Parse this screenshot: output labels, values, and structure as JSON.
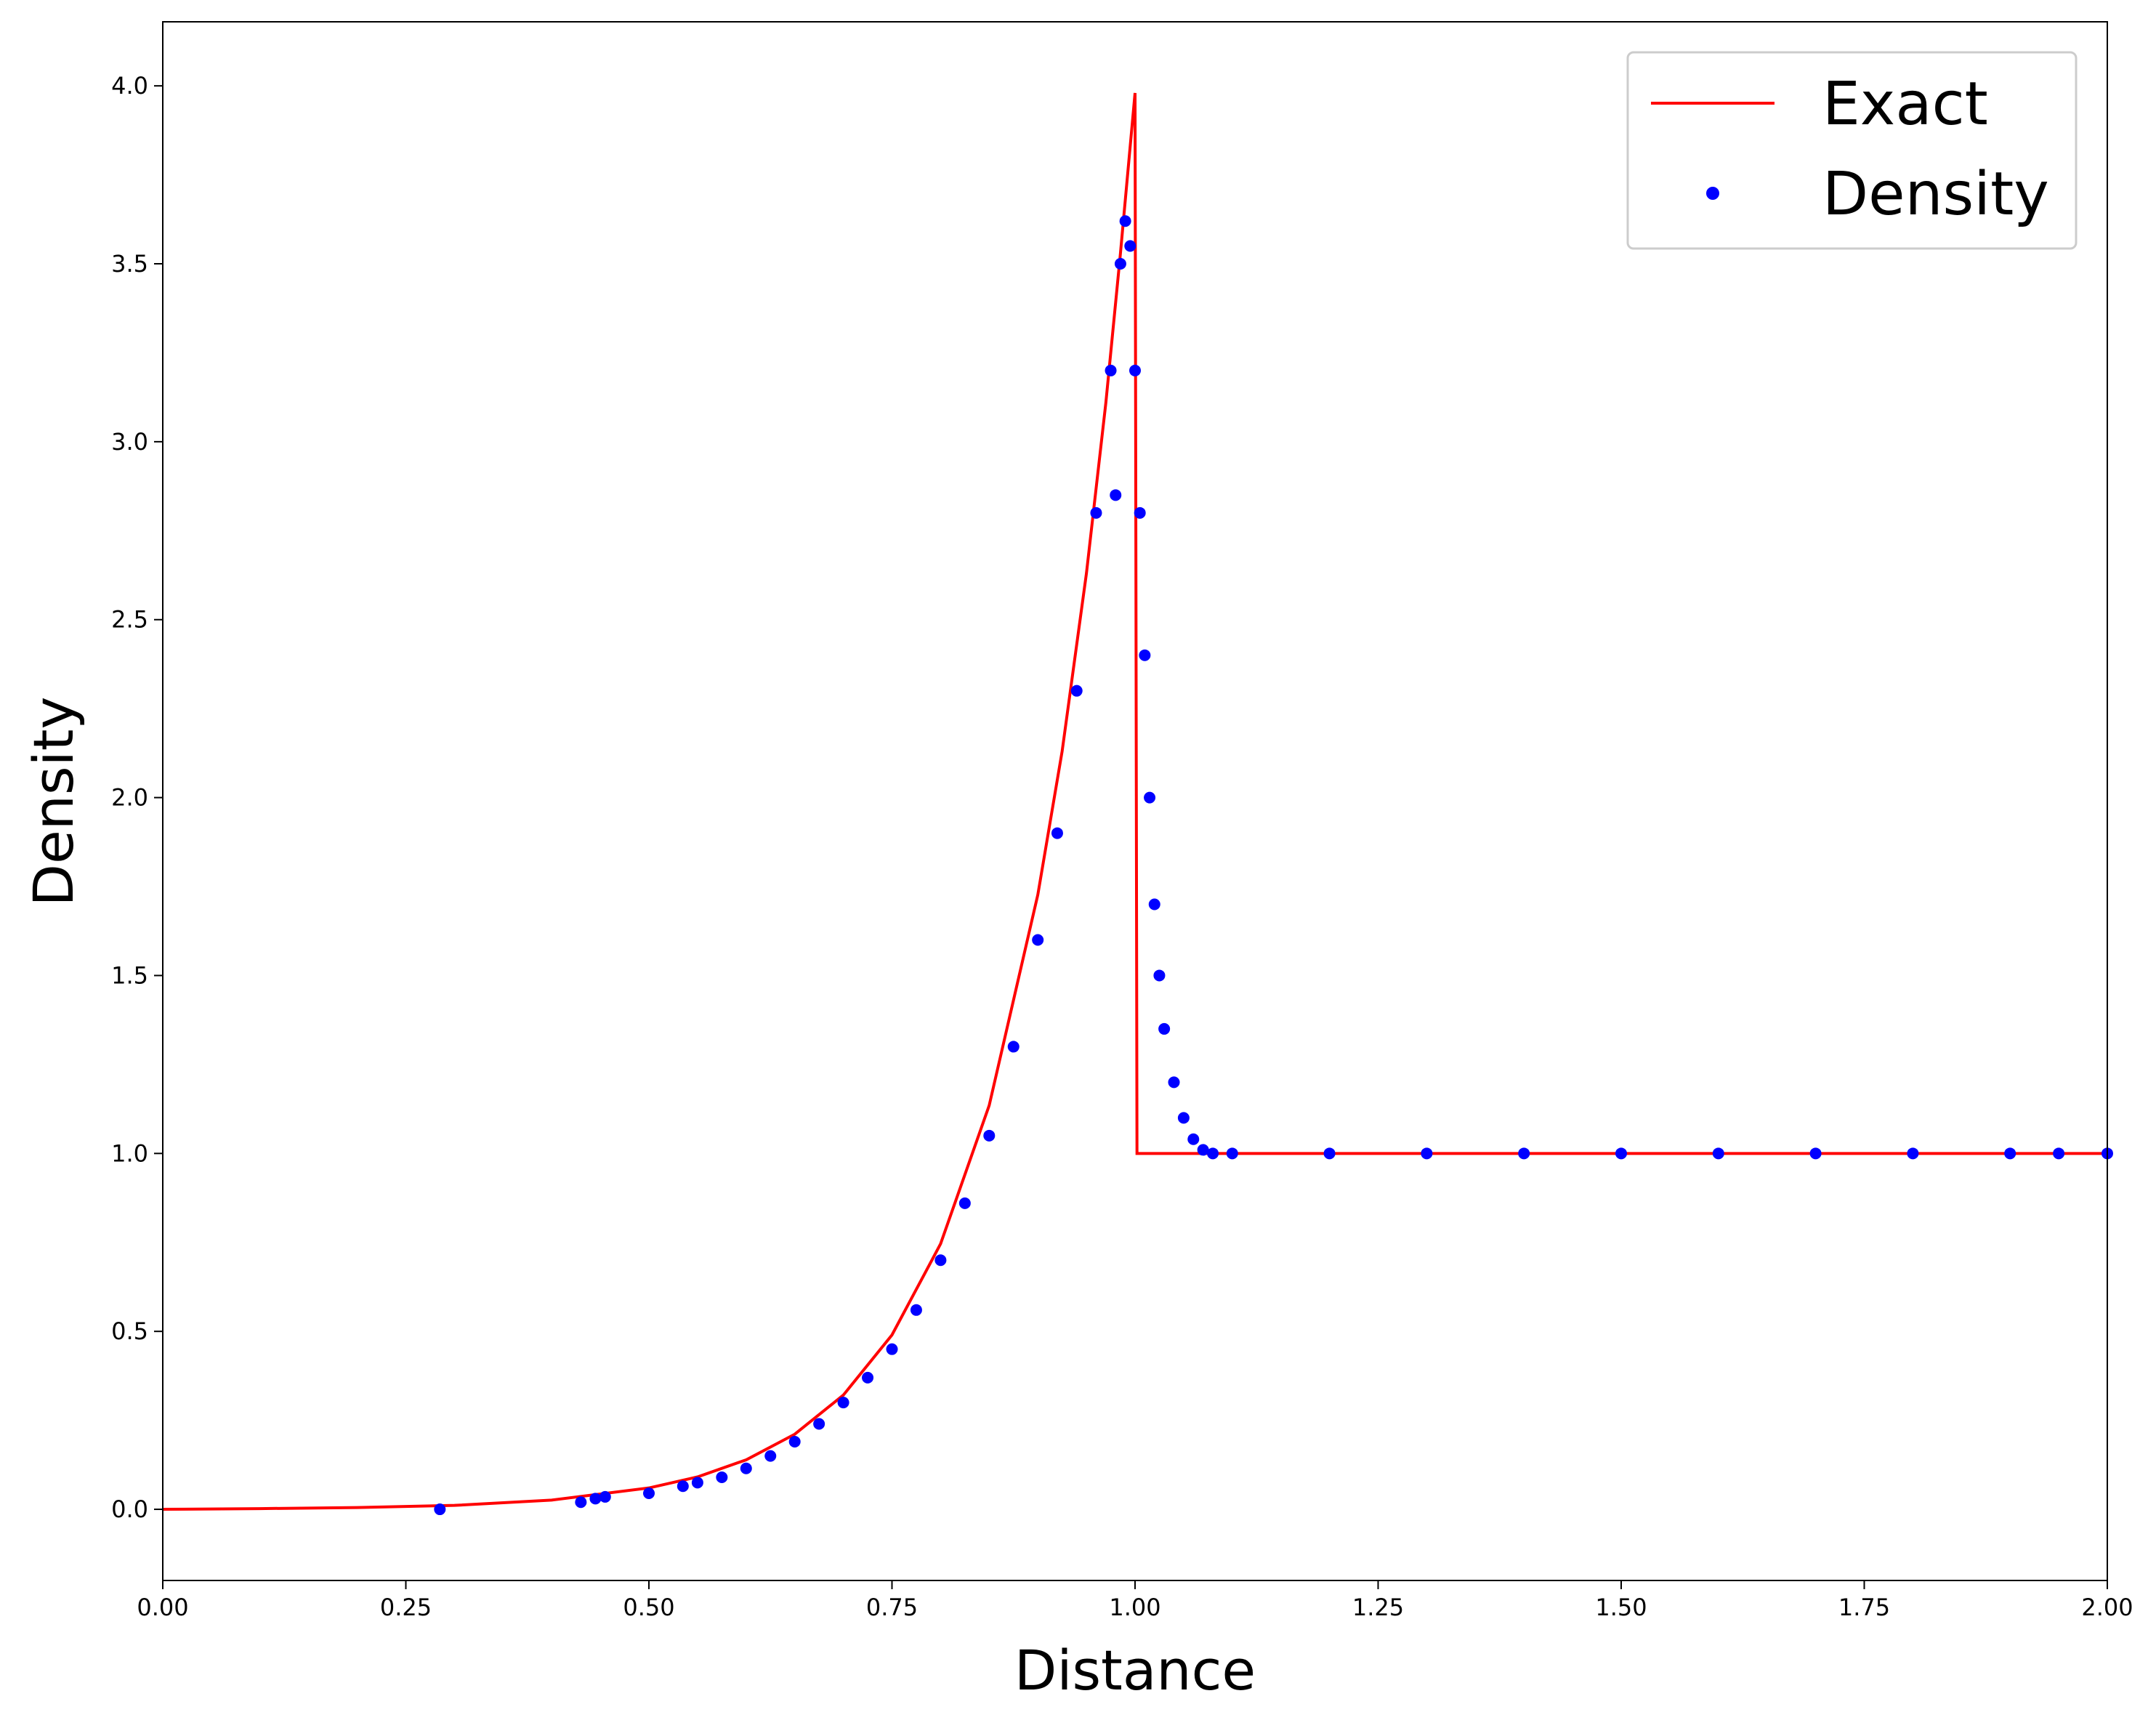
{
  "chart_data": {
    "type": "line_scatter",
    "xlabel": "Distance",
    "ylabel": "Density",
    "xlim": [
      0,
      2
    ],
    "ylim": [
      -0.2,
      4.18
    ],
    "xticks": [
      {
        "value": 0,
        "label": "0.00"
      },
      {
        "value": 0.25,
        "label": "0.25"
      },
      {
        "value": 0.5,
        "label": "0.50"
      },
      {
        "value": 0.75,
        "label": "0.75"
      },
      {
        "value": 1,
        "label": "1.00"
      },
      {
        "value": 1.25,
        "label": "1.25"
      },
      {
        "value": 1.5,
        "label": "1.50"
      },
      {
        "value": 1.75,
        "label": "1.75"
      },
      {
        "value": 2,
        "label": "2.00"
      }
    ],
    "yticks": [
      {
        "value": 0,
        "label": "0.0"
      },
      {
        "value": 0.5,
        "label": "0.5"
      },
      {
        "value": 1,
        "label": "1.0"
      },
      {
        "value": 1.5,
        "label": "1.5"
      },
      {
        "value": 2,
        "label": "2.0"
      },
      {
        "value": 2.5,
        "label": "2.5"
      },
      {
        "value": 3,
        "label": "3.0"
      },
      {
        "value": 3.5,
        "label": "3.5"
      },
      {
        "value": 4,
        "label": "4.0"
      }
    ],
    "legend": "upper right",
    "series": [
      {
        "name": "Exact",
        "type": "line",
        "color": "#ff0000",
        "x": [
          0,
          0.1,
          0.2,
          0.3,
          0.4,
          0.5,
          0.55,
          0.6,
          0.65,
          0.7,
          0.75,
          0.8,
          0.85,
          0.9,
          0.925,
          0.95,
          0.97,
          0.985,
          1.0,
          1.002,
          2.0
        ],
        "values": [
          0.0,
          0.002,
          0.005,
          0.011,
          0.026,
          0.06,
          0.091,
          0.139,
          0.211,
          0.321,
          0.49,
          0.746,
          1.135,
          1.727,
          2.13,
          2.63,
          3.11,
          3.53,
          3.98,
          1.0,
          1.0
        ]
      },
      {
        "name": "Density",
        "type": "scatter",
        "color": "#0000ff",
        "x": [
          0.285,
          0.43,
          0.445,
          0.455,
          0.5,
          0.535,
          0.55,
          0.575,
          0.6,
          0.625,
          0.65,
          0.675,
          0.7,
          0.725,
          0.75,
          0.775,
          0.8,
          0.825,
          0.85,
          0.875,
          0.9,
          0.92,
          0.94,
          0.96,
          0.975,
          0.98,
          0.985,
          0.99,
          0.995,
          1.0,
          1.005,
          1.01,
          1.015,
          1.02,
          1.025,
          1.03,
          1.04,
          1.05,
          1.06,
          1.07,
          1.08,
          1.1,
          1.2,
          1.3,
          1.4,
          1.5,
          1.6,
          1.7,
          1.8,
          1.9,
          1.95,
          2.0
        ],
        "values": [
          0.0,
          0.02,
          0.03,
          0.035,
          0.045,
          0.065,
          0.075,
          0.09,
          0.115,
          0.15,
          0.19,
          0.24,
          0.3,
          0.37,
          0.45,
          0.56,
          0.7,
          0.86,
          1.05,
          1.3,
          1.6,
          1.9,
          2.3,
          2.8,
          3.2,
          2.85,
          3.5,
          3.62,
          3.55,
          3.2,
          2.8,
          2.4,
          2.0,
          1.7,
          1.5,
          1.35,
          1.2,
          1.1,
          1.04,
          1.01,
          1.0,
          1.0,
          1.0,
          1.0,
          1.0,
          1.0,
          1.0,
          1.0,
          1.0,
          1.0,
          1.0,
          1.0
        ]
      }
    ]
  }
}
